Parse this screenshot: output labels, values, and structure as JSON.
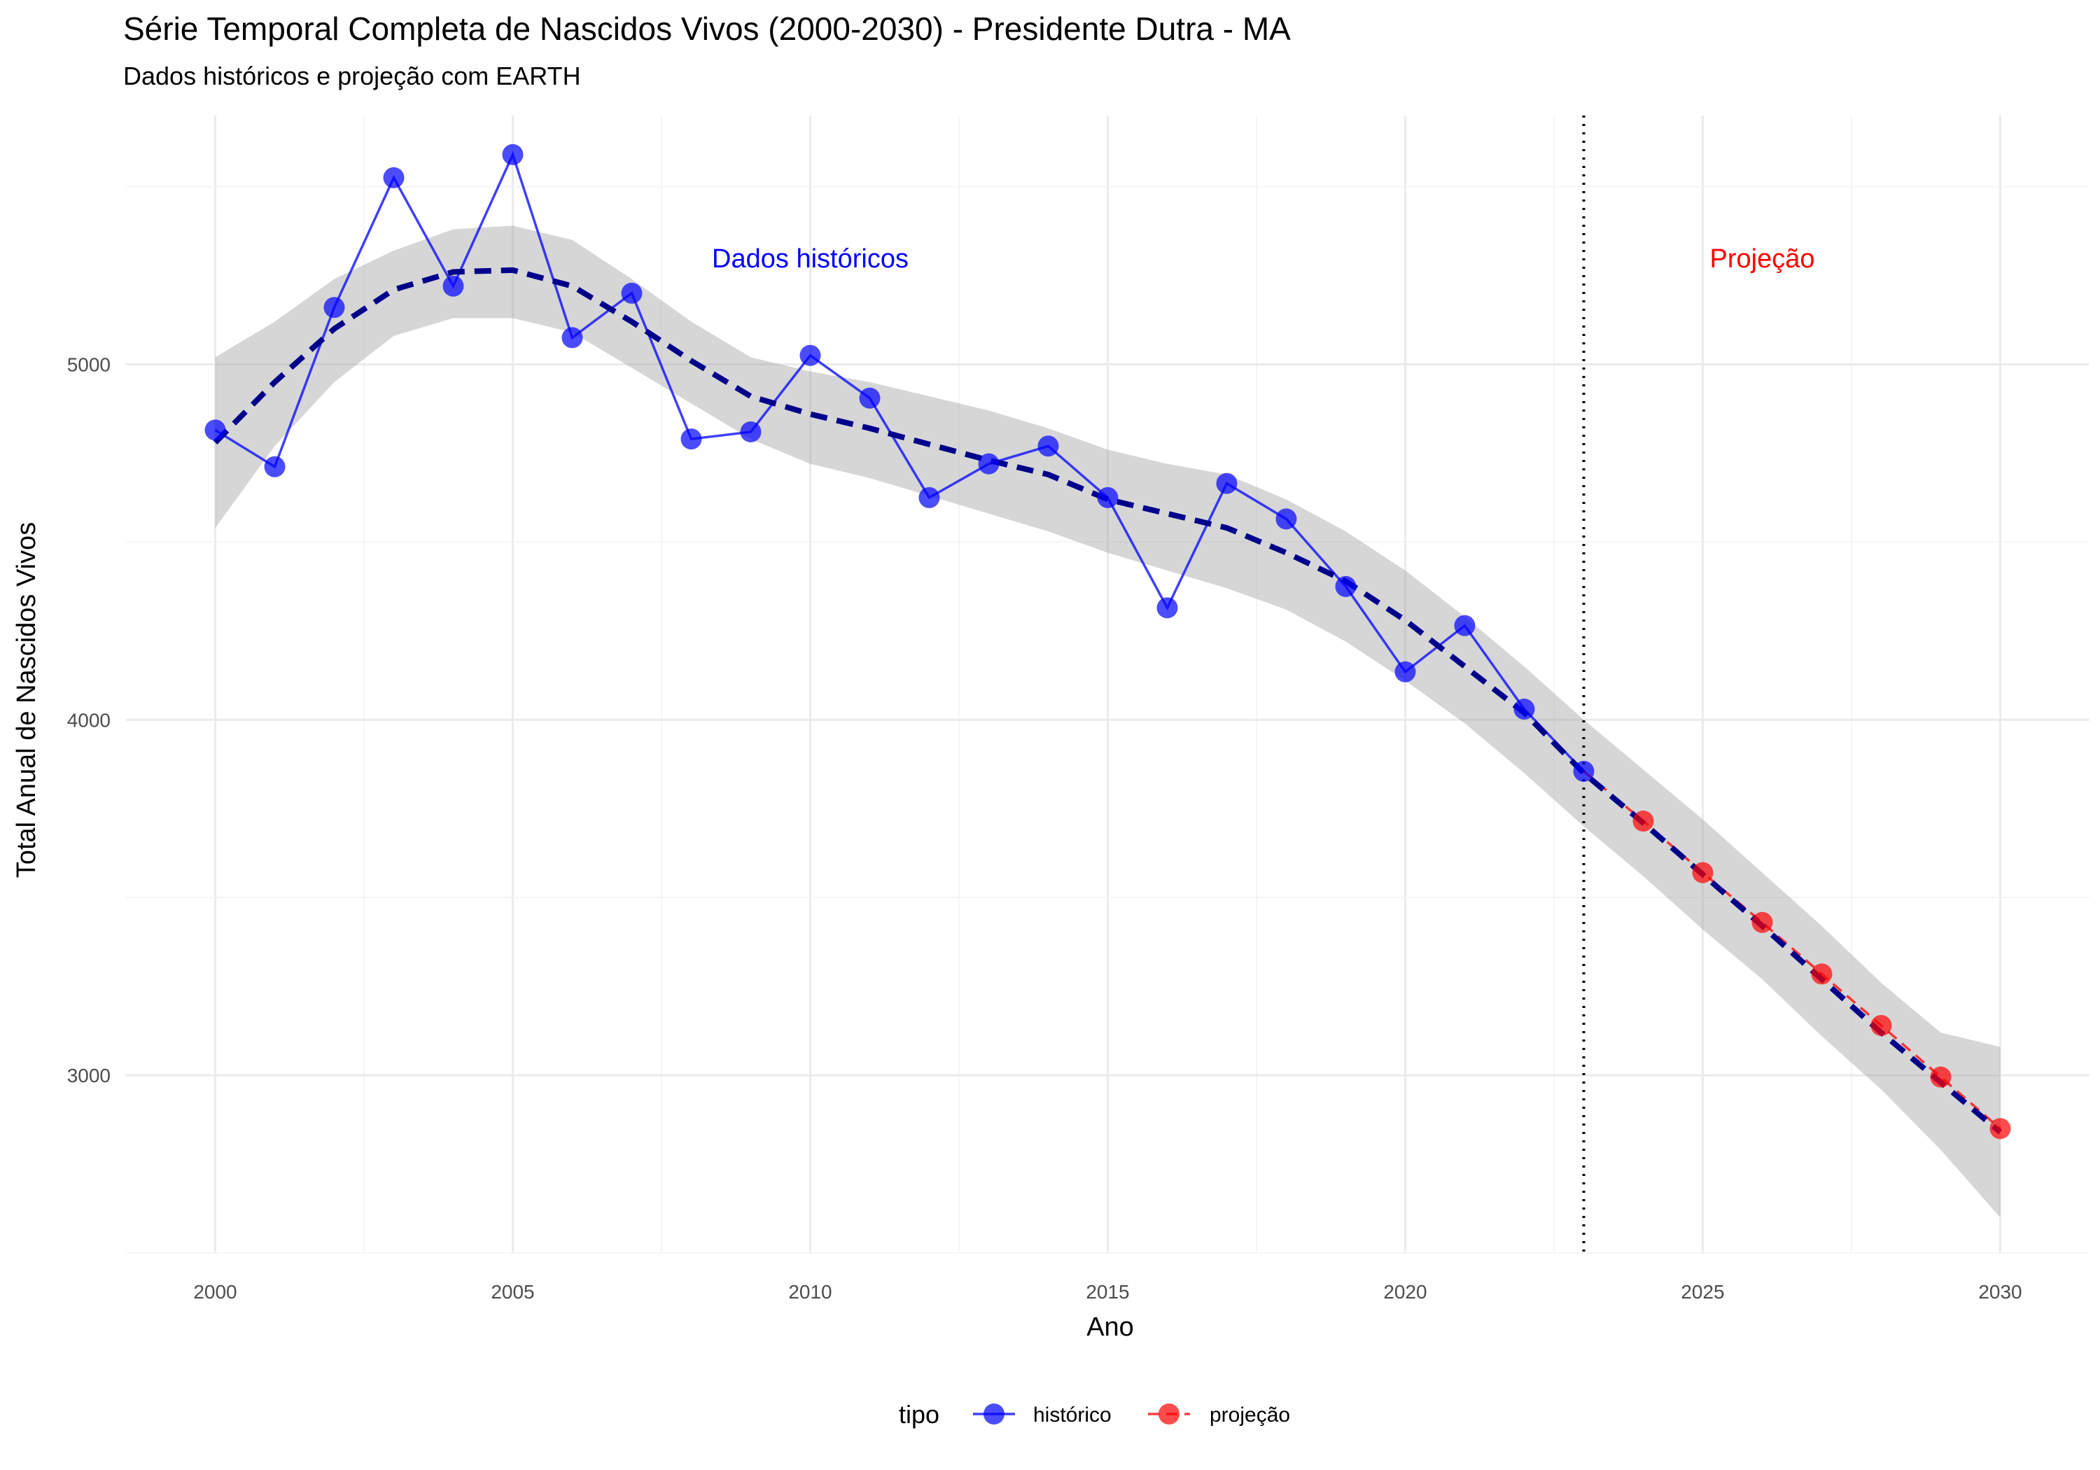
{
  "chart_data": {
    "type": "line",
    "title": "Série Temporal Completa de Nascidos Vivos (2000-2030) -  Presidente Dutra - MA",
    "subtitle": "Dados históricos e projeção com EARTH",
    "xlabel": "Ano",
    "ylabel": "Total Anual de Nascidos Vivos",
    "xlim": [
      1998.5,
      2031.5
    ],
    "ylim": [
      2500,
      5700
    ],
    "x_ticks": [
      2000,
      2005,
      2010,
      2015,
      2020,
      2025,
      2030
    ],
    "y_ticks": [
      3000,
      4000,
      5000
    ],
    "grid": true,
    "legend": {
      "title": "tipo",
      "position": "bottom",
      "items": [
        {
          "label": "histórico",
          "color": "#0000FF"
        },
        {
          "label": "projeção",
          "color": "#FF0000"
        }
      ]
    },
    "annotations": [
      {
        "text": "Dados históricos",
        "x": 2010,
        "y": 5300,
        "color": "#0000FF"
      },
      {
        "text": "Projeção",
        "x": 2026,
        "y": 5300,
        "color": "#FF0000"
      }
    ],
    "vline": {
      "x": 2023
    },
    "series": [
      {
        "name": "histórico",
        "color": "#0000FF",
        "x": [
          2000,
          2001,
          2002,
          2003,
          2004,
          2005,
          2006,
          2007,
          2008,
          2009,
          2010,
          2011,
          2012,
          2013,
          2014,
          2015,
          2016,
          2017,
          2018,
          2019,
          2020,
          2021,
          2022,
          2023
        ],
        "values": [
          4815,
          4712,
          5160,
          5525,
          5220,
          5590,
          5075,
          5200,
          4790,
          4810,
          5025,
          4905,
          4625,
          4720,
          4770,
          4625,
          4315,
          4665,
          4565,
          4375,
          4135,
          4265,
          4030,
          3855
        ]
      },
      {
        "name": "projeção",
        "color": "#FF0000",
        "x": [
          2023,
          2024,
          2025,
          2026,
          2027,
          2028,
          2029,
          2030
        ],
        "values": [
          3855,
          3715,
          3570,
          3430,
          3285,
          3140,
          2995,
          2850
        ]
      }
    ],
    "trend": {
      "x": [
        2000,
        2001,
        2002,
        2003,
        2004,
        2005,
        2006,
        2007,
        2008,
        2009,
        2010,
        2011,
        2012,
        2013,
        2014,
        2015,
        2016,
        2017,
        2018,
        2019,
        2020,
        2021,
        2022,
        2023,
        2024,
        2025,
        2026,
        2027,
        2028,
        2029,
        2030
      ],
      "values": [
        4780,
        4950,
        5100,
        5210,
        5260,
        5265,
        5220,
        5120,
        5010,
        4910,
        4860,
        4820,
        4775,
        4730,
        4690,
        4620,
        4580,
        4540,
        4470,
        4390,
        4280,
        4150,
        4020,
        3850,
        3710,
        3565,
        3420,
        3270,
        3120,
        2980,
        2840
      ],
      "lower": [
        4540,
        4770,
        4950,
        5080,
        5130,
        5130,
        5090,
        4990,
        4890,
        4790,
        4720,
        4680,
        4630,
        4580,
        4530,
        4470,
        4420,
        4370,
        4310,
        4220,
        4110,
        3990,
        3850,
        3700,
        3560,
        3410,
        3270,
        3110,
        2960,
        2790,
        2600
      ],
      "upper": [
        5020,
        5120,
        5240,
        5320,
        5380,
        5390,
        5350,
        5240,
        5120,
        5020,
        4980,
        4950,
        4910,
        4870,
        4820,
        4760,
        4720,
        4690,
        4620,
        4530,
        4420,
        4290,
        4150,
        4000,
        3860,
        3720,
        3570,
        3420,
        3260,
        3120,
        3080
      ]
    }
  }
}
